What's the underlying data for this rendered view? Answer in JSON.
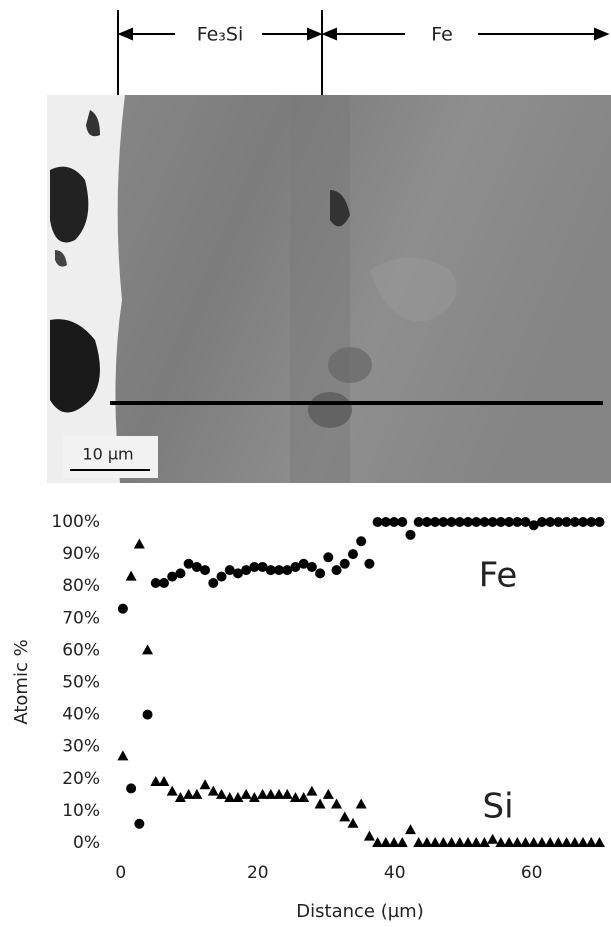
{
  "figure": {
    "phase_left": "Fe₃Si",
    "phase_right": "Fe",
    "scale_bar": "10 µm"
  },
  "chart_data": {
    "type": "scatter",
    "xlabel": "Distance (µm)",
    "ylabel": "Atomic %",
    "x": [
      0.3,
      1.5,
      2.7,
      3.9,
      5.1,
      6.3,
      7.5,
      8.7,
      9.9,
      11.1,
      12.3,
      13.5,
      14.7,
      15.9,
      17.1,
      18.3,
      19.5,
      20.7,
      21.9,
      23.1,
      24.3,
      25.5,
      26.7,
      27.9,
      29.1,
      30.3,
      31.5,
      32.7,
      33.9,
      35.1,
      36.3,
      37.5,
      38.7,
      39.9,
      41.1,
      42.3,
      43.5,
      44.7,
      45.9,
      47.1,
      48.3,
      49.5,
      50.7,
      51.9,
      53.1,
      54.3,
      55.5,
      56.7,
      57.9,
      59.1,
      60.3,
      61.5,
      62.7,
      63.9,
      65.1,
      66.3,
      67.5,
      68.7,
      69.9
    ],
    "series": [
      {
        "name": "Fe",
        "color": "#000000",
        "marker": "circle",
        "values": [
          73,
          17,
          6,
          40,
          81,
          81,
          83,
          84,
          87,
          86,
          85,
          81,
          83,
          85,
          84,
          85,
          86,
          86,
          85,
          85,
          85,
          86,
          87,
          86,
          84,
          89,
          85,
          87,
          90,
          94,
          87,
          100,
          100,
          100,
          100,
          96,
          100,
          100,
          100,
          100,
          100,
          100,
          100,
          100,
          100,
          100,
          100,
          100,
          100,
          100,
          99,
          100,
          100,
          100,
          100,
          100,
          100,
          100,
          100
        ]
      },
      {
        "name": "Si",
        "color": "#000000",
        "marker": "triangle",
        "values": [
          27,
          83,
          93,
          60,
          19,
          19,
          16,
          14,
          15,
          15,
          18,
          16,
          15,
          14,
          14,
          15,
          14,
          15,
          15,
          15,
          15,
          14,
          14,
          16,
          12,
          15,
          12,
          8,
          6,
          12,
          2,
          0,
          0,
          0,
          0,
          4,
          0,
          0,
          0,
          0,
          0,
          0,
          0,
          0,
          0,
          1,
          0,
          0,
          0,
          0,
          0,
          0,
          0,
          0,
          0,
          0,
          0,
          0,
          0
        ]
      }
    ],
    "xlim": [
      -1,
      71
    ],
    "xticks": [
      0,
      20,
      40,
      60
    ],
    "ylim": [
      0,
      100
    ],
    "yticks": [
      {
        "value": 0,
        "label": "0%"
      },
      {
        "value": 10,
        "label": "10%"
      },
      {
        "value": 20,
        "label": "20%"
      },
      {
        "value": 30,
        "label": "30%"
      },
      {
        "value": 40,
        "label": "40%"
      },
      {
        "value": 50,
        "label": "50%"
      },
      {
        "value": 60,
        "label": "60%"
      },
      {
        "value": 70,
        "label": "70%"
      },
      {
        "value": 80,
        "label": "80%"
      },
      {
        "value": 90,
        "label": "90%"
      },
      {
        "value": 100,
        "label": "100%"
      }
    ],
    "grid": false
  }
}
